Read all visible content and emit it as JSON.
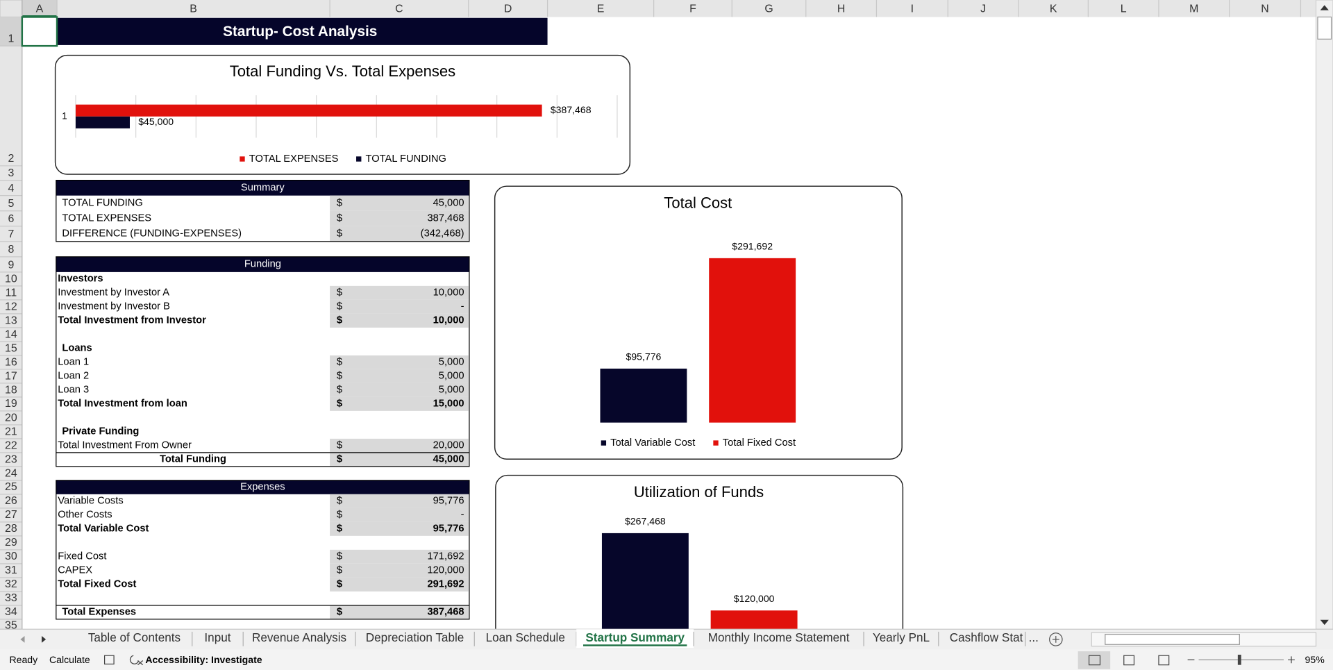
{
  "column_headers": [
    "A",
    "B",
    "C",
    "D",
    "E",
    "F",
    "G",
    "H",
    "I",
    "J",
    "K",
    "L",
    "M",
    "N"
  ],
  "row_headers": [
    "1",
    "2",
    "3",
    "4",
    "5",
    "6",
    "7",
    "8",
    "9",
    "10",
    "11",
    "12",
    "13",
    "14",
    "15",
    "16",
    "17",
    "18",
    "19",
    "20",
    "21",
    "22",
    "23",
    "24",
    "25",
    "26",
    "27",
    "28",
    "29",
    "30",
    "31",
    "32",
    "33",
    "34",
    "35"
  ],
  "title": "Startup- Cost Analysis",
  "summary": {
    "header": "Summary",
    "rows": [
      {
        "label": "TOTAL FUNDING",
        "currency": "$",
        "value": "45,000"
      },
      {
        "label": "TOTAL EXPENSES",
        "currency": "$",
        "value": "387,468"
      },
      {
        "label": "DIFFERENCE (FUNDING-EXPENSES)",
        "currency": "$",
        "value": "(342,468)"
      }
    ]
  },
  "funding": {
    "header": "Funding",
    "sections": [
      {
        "title": "Investors",
        "rows": [
          {
            "label": "Investment by Investor A",
            "currency": "$",
            "value": "10,000"
          },
          {
            "label": "Investment by Investor B",
            "currency": "$",
            "value": "-"
          },
          {
            "label": "Total Investment from Investor",
            "currency": "$",
            "value": "10,000",
            "bold": true
          }
        ]
      },
      {
        "title": "Loans",
        "rows": [
          {
            "label": "Loan 1",
            "currency": "$",
            "value": "5,000"
          },
          {
            "label": "Loan 2",
            "currency": "$",
            "value": "5,000"
          },
          {
            "label": "Loan 3",
            "currency": "$",
            "value": "5,000"
          },
          {
            "label": "Total Investment from loan",
            "currency": "$",
            "value": "15,000",
            "bold": true
          }
        ]
      },
      {
        "title": "Private Funding",
        "rows": [
          {
            "label": "Total Investment From Owner",
            "currency": "$",
            "value": "20,000"
          }
        ]
      }
    ],
    "total": {
      "label": "Total Funding",
      "currency": "$",
      "value": "45,000"
    }
  },
  "expenses": {
    "header": "Expenses",
    "sections": [
      {
        "rows": [
          {
            "label": "Variable Costs",
            "currency": "$",
            "value": "95,776"
          },
          {
            "label": "Other Costs",
            "currency": "$",
            "value": "-"
          },
          {
            "label": "Total Variable Cost",
            "currency": "$",
            "value": "95,776",
            "bold": true
          }
        ]
      },
      {
        "rows": [
          {
            "label": "Fixed Cost",
            "currency": "$",
            "value": "171,692"
          },
          {
            "label": "CAPEX",
            "currency": "$",
            "value": "120,000"
          },
          {
            "label": "Total Fixed Cost",
            "currency": "$",
            "value": "291,692",
            "bold": true
          }
        ]
      }
    ],
    "total": {
      "label": "Total Expenses",
      "currency": "$",
      "value": "387,468"
    }
  },
  "chart_data": [
    {
      "type": "bar",
      "orientation": "horizontal",
      "title": "Total Funding Vs. Total Expenses",
      "categories": [
        "1"
      ],
      "series": [
        {
          "name": "TOTAL EXPENSES",
          "color": "#e1110c",
          "values": [
            387468
          ],
          "value_labels": [
            "$387,468"
          ]
        },
        {
          "name": "TOTAL FUNDING",
          "color": "#06062a",
          "values": [
            45000
          ],
          "value_labels": [
            "$45,000"
          ]
        }
      ],
      "xlim": [
        0,
        450000
      ],
      "xticks": [
        0,
        50000,
        100000,
        150000,
        200000,
        250000,
        300000,
        350000,
        400000,
        450000
      ],
      "grid": true,
      "legend": "bottom"
    },
    {
      "type": "bar",
      "title": "Total Cost",
      "categories": [
        null
      ],
      "series": [
        {
          "name": "Total Variable Cost",
          "color": "#06062a",
          "values": [
            95776
          ],
          "value_labels": [
            "$95,776"
          ]
        },
        {
          "name": "Total Fixed Cost",
          "color": "#e1110c",
          "values": [
            291692
          ],
          "value_labels": [
            "$291,692"
          ]
        }
      ],
      "ylim": [
        0,
        350000
      ],
      "legend": "bottom"
    },
    {
      "type": "bar",
      "title": "Utilization of Funds",
      "categories": [
        null,
        null
      ],
      "values": [
        267468,
        120000
      ],
      "value_labels": [
        "$267,468",
        "$120,000"
      ],
      "colors": [
        "#06062a",
        "#e1110c"
      ],
      "ylim": [
        0,
        300000
      ]
    }
  ],
  "tabs": {
    "items": [
      "Table of Contents",
      "Input",
      "Revenue Analysis",
      "Depreciation Table",
      "Loan Schedule",
      "Startup Summary",
      "Monthly Income Statement",
      "Yearly PnL",
      "Cashflow Stat"
    ],
    "active_index": 5,
    "overflow": "..."
  },
  "status_bar": {
    "mode": "Ready",
    "calculate": "Calculate",
    "accessibility": "Accessibility: Investigate",
    "zoom": "95%"
  }
}
